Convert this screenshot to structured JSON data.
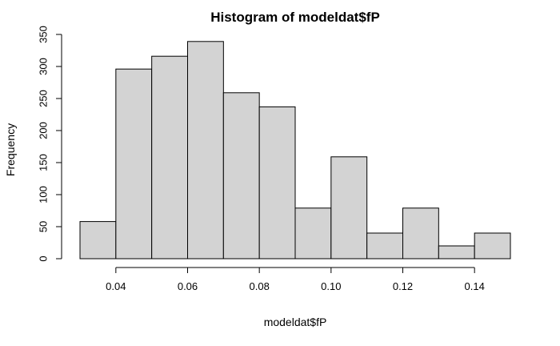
{
  "chart_data": {
    "type": "bar",
    "title": "Histogram of modeldat$fP",
    "xlabel": "modeldat$fP",
    "ylabel": "Frequency",
    "bins": [
      {
        "x0": 0.03,
        "x1": 0.04,
        "count": 58
      },
      {
        "x0": 0.04,
        "x1": 0.05,
        "count": 296
      },
      {
        "x0": 0.05,
        "x1": 0.06,
        "count": 316
      },
      {
        "x0": 0.06,
        "x1": 0.07,
        "count": 339
      },
      {
        "x0": 0.07,
        "x1": 0.08,
        "count": 259
      },
      {
        "x0": 0.08,
        "x1": 0.09,
        "count": 237
      },
      {
        "x0": 0.09,
        "x1": 0.1,
        "count": 79
      },
      {
        "x0": 0.1,
        "x1": 0.11,
        "count": 159
      },
      {
        "x0": 0.11,
        "x1": 0.12,
        "count": 40
      },
      {
        "x0": 0.12,
        "x1": 0.13,
        "count": 79
      },
      {
        "x0": 0.13,
        "x1": 0.14,
        "count": 20
      },
      {
        "x0": 0.14,
        "x1": 0.15,
        "count": 40
      }
    ],
    "xlim": [
      0.03,
      0.15
    ],
    "ylim": [
      0,
      350
    ],
    "xticks": [
      0.04,
      0.06,
      0.08,
      0.1,
      0.12,
      0.14
    ],
    "xtick_labels": [
      "0.04",
      "0.06",
      "0.08",
      "0.10",
      "0.12",
      "0.14"
    ],
    "yticks": [
      0,
      50,
      100,
      150,
      200,
      250,
      300,
      350
    ],
    "ytick_labels": [
      "0",
      "50",
      "100",
      "150",
      "200",
      "250",
      "300",
      "350"
    ],
    "bar_color": "#d3d3d3",
    "edge_color": "#000000",
    "grid": false,
    "legend": "none"
  }
}
